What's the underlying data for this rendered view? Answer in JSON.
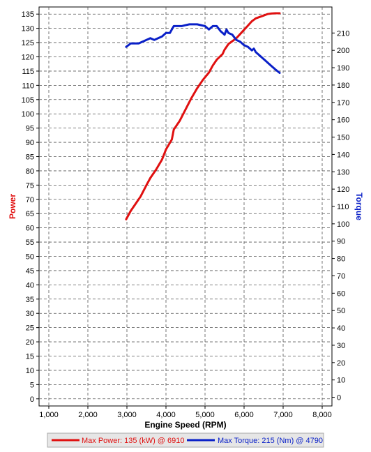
{
  "chart_data": {
    "type": "line",
    "xlabel": "Engine Speed (RPM)",
    "ylabel_left": "Power",
    "ylabel_right": "Torque",
    "xlim": [
      750,
      8250
    ],
    "ylim_left": [
      -2.5,
      137.5
    ],
    "ylim_right": [
      -5,
      225
    ],
    "x_ticks": [
      1000,
      2000,
      3000,
      4000,
      5000,
      6000,
      7000,
      8000
    ],
    "x_tick_labels": [
      "1,000",
      "2,000",
      "3,000",
      "4,000",
      "5,000",
      "6,000",
      "7,000",
      "8,000"
    ],
    "y_left_ticks": [
      0,
      5,
      10,
      15,
      20,
      25,
      30,
      35,
      40,
      45,
      50,
      55,
      60,
      65,
      70,
      75,
      80,
      85,
      90,
      95,
      100,
      105,
      110,
      115,
      120,
      125,
      130,
      135
    ],
    "y_left_tick_labels": [
      "0",
      "5",
      "10",
      "15",
      "20",
      "25",
      "30",
      "35",
      "40",
      "45",
      "50",
      "55",
      "60",
      "65",
      "70",
      "75",
      "80",
      "85",
      "90",
      "95",
      "100",
      "105",
      "110",
      "115",
      "120",
      "125",
      "130",
      "135"
    ],
    "y_right_ticks": [
      0,
      10,
      20,
      30,
      40,
      50,
      60,
      70,
      80,
      90,
      100,
      110,
      120,
      130,
      140,
      150,
      160,
      170,
      180,
      190,
      200,
      210
    ],
    "y_right_tick_labels": [
      "0",
      "10",
      "20",
      "30",
      "40",
      "50",
      "60",
      "70",
      "80",
      "90",
      "100",
      "110",
      "120",
      "130",
      "140",
      "150",
      "160",
      "170",
      "180",
      "190",
      "200",
      "210"
    ],
    "grid": true,
    "legend_position": "bottom",
    "series": [
      {
        "name": "Max Power: 135 (kW) @ 6910",
        "axis": "left",
        "color": "#e01010",
        "x": [
          2980,
          3100,
          3200,
          3350,
          3500,
          3600,
          3750,
          3900,
          4000,
          4150,
          4200,
          4350,
          4500,
          4650,
          4800,
          4950,
          5100,
          5200,
          5300,
          5450,
          5500,
          5600,
          5700,
          5800,
          5900,
          6000,
          6100,
          6200,
          6300,
          6400,
          6500,
          6600,
          6700,
          6800,
          6910
        ],
        "y": [
          63,
          66,
          68,
          71,
          75,
          77.5,
          80.5,
          84,
          87.5,
          91,
          94.5,
          97.5,
          101.5,
          105.5,
          109,
          112,
          114.5,
          117,
          119,
          121,
          122.5,
          124.5,
          125.5,
          126.5,
          128,
          129.5,
          131,
          132.5,
          133.5,
          134,
          134.5,
          135,
          135.2,
          135.3,
          135.3
        ]
      },
      {
        "name": "Max Torque: 215 (Nm) @ 4790",
        "axis": "right",
        "color": "#0a20c8",
        "x": [
          2980,
          3100,
          3300,
          3400,
          3500,
          3600,
          3700,
          3800,
          3900,
          4000,
          4100,
          4200,
          4300,
          4400,
          4500,
          4600,
          4700,
          4800,
          4900,
          5000,
          5100,
          5200,
          5300,
          5400,
          5500,
          5550,
          5600,
          5700,
          5800,
          5900,
          6000,
          6100,
          6200,
          6250,
          6300,
          6400,
          6500,
          6600,
          6700,
          6800,
          6910
        ],
        "y": [
          202,
          204,
          204,
          205,
          206,
          207,
          206,
          207,
          208,
          210,
          210,
          214,
          214,
          214,
          214.5,
          215,
          215,
          215,
          214.5,
          214,
          212,
          214,
          214,
          211,
          209,
          212,
          210,
          209,
          206,
          205,
          203,
          202,
          200,
          201,
          199,
          197,
          195,
          193,
          191,
          189,
          187
        ]
      }
    ]
  }
}
